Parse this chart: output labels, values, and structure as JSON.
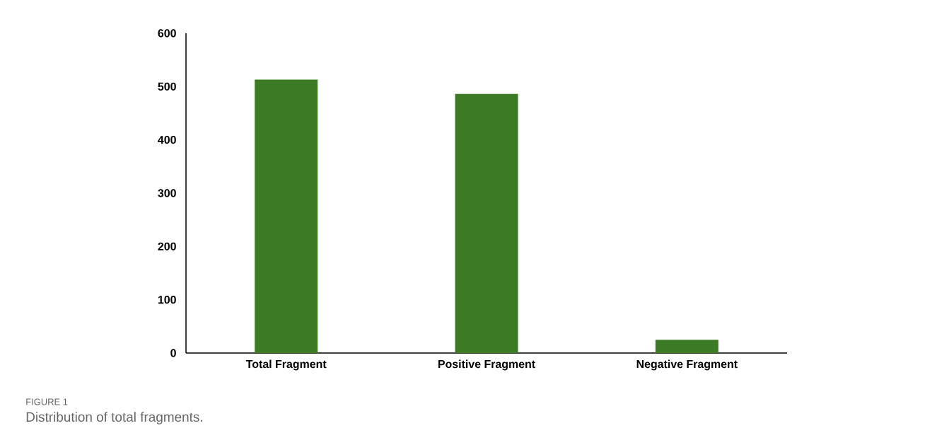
{
  "chart_data": {
    "type": "bar",
    "categories": [
      "Total Fragment",
      "Positive Fragment",
      "Negative Fragment"
    ],
    "values": [
      513,
      486,
      25
    ],
    "color": "#3d7a24",
    "ylim": [
      0,
      600
    ],
    "yticks": [
      0,
      100,
      200,
      300,
      400,
      500,
      600
    ],
    "grid": false,
    "annotations": [
      "FIGURE 1",
      "Distribution of total fragments."
    ]
  }
}
